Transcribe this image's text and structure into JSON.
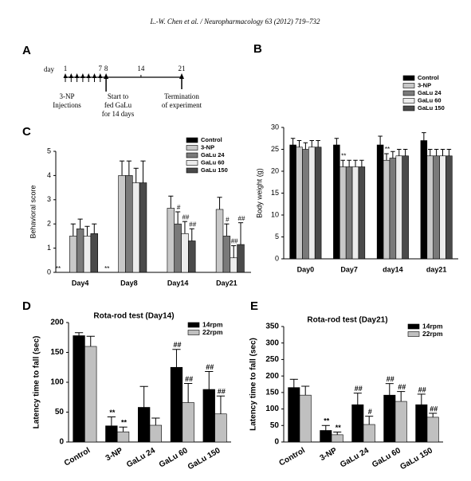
{
  "header": "L.-W. Chen et al. / Neuropharmacology 63 (2012) 719–732",
  "panel_a": {
    "panel": "A",
    "axis_label": "day",
    "days": [
      1,
      7,
      8,
      14,
      21
    ],
    "injection_label": [
      "3-NP",
      "Injections"
    ],
    "start_label": [
      "Start to",
      "fed GaLu",
      "for 14 days"
    ],
    "end_label": [
      "Termination",
      "of experiment"
    ]
  },
  "chart_data": [
    {
      "type": "bar",
      "panel": "B",
      "ylabel": "Body weight (g)",
      "categories": [
        "Day0",
        "Day7",
        "day14",
        "day21"
      ],
      "series": [
        {
          "name": "Control",
          "color": "#000000",
          "values": [
            26,
            26,
            26,
            27
          ],
          "errors": [
            1.5,
            1.5,
            2,
            1.8
          ],
          "significance": [
            null,
            null,
            null,
            null
          ]
        },
        {
          "name": "3-NP",
          "color": "#c8c8c8",
          "values": [
            25.5,
            21,
            22.5,
            23.5
          ],
          "errors": [
            1.5,
            1.5,
            1.5,
            1.5
          ],
          "significance": [
            null,
            "**",
            "**",
            null
          ]
        },
        {
          "name": "GaLu 24",
          "color": "#7a7a7a",
          "values": [
            25,
            21,
            23,
            23.5
          ],
          "errors": [
            1.5,
            1.5,
            1.5,
            1.5
          ],
          "significance": [
            null,
            null,
            null,
            null
          ]
        },
        {
          "name": "GaLu 60",
          "color": "#ececec",
          "values": [
            25.5,
            21,
            23.5,
            23.5
          ],
          "errors": [
            1.5,
            1.5,
            1.5,
            1.5
          ],
          "significance": [
            null,
            null,
            null,
            null
          ]
        },
        {
          "name": "GaLu 150",
          "color": "#4a4a4a",
          "values": [
            25.5,
            21,
            23.5,
            23.5
          ],
          "errors": [
            1.5,
            1.5,
            1.5,
            1.5
          ],
          "significance": [
            null,
            null,
            null,
            null
          ]
        }
      ],
      "ylim": [
        0,
        30
      ],
      "yticks": [
        0,
        5,
        10,
        15,
        20,
        25,
        30
      ],
      "legend": "upper right"
    },
    {
      "type": "bar",
      "panel": "C",
      "ylabel": "Behavioral score",
      "categories": [
        "Day4",
        "Day8",
        "Day14",
        "Day21"
      ],
      "series": [
        {
          "name": "Control",
          "color": "#000000",
          "values": [
            0,
            0,
            0,
            0
          ],
          "errors": [
            0,
            0,
            0,
            0
          ],
          "significance": [
            "**",
            "**",
            null,
            null
          ]
        },
        {
          "name": "3-NP",
          "color": "#c8c8c8",
          "values": [
            1.5,
            4.0,
            2.65,
            2.6
          ],
          "errors": [
            0.5,
            0.6,
            0.5,
            0.5
          ],
          "significance": [
            null,
            null,
            null,
            null
          ]
        },
        {
          "name": "GaLu 24",
          "color": "#7a7a7a",
          "values": [
            1.8,
            4.0,
            2.0,
            1.5
          ],
          "errors": [
            0.4,
            0.6,
            0.5,
            0.5
          ],
          "significance": [
            null,
            null,
            "#",
            "#"
          ]
        },
        {
          "name": "GaLu 60",
          "color": "#ececec",
          "values": [
            1.5,
            3.7,
            1.6,
            0.6
          ],
          "errors": [
            0.4,
            0.6,
            0.5,
            0.5
          ],
          "significance": [
            null,
            null,
            "##",
            "##"
          ]
        },
        {
          "name": "GaLu 150",
          "color": "#4a4a4a",
          "values": [
            1.6,
            3.7,
            1.3,
            1.15
          ],
          "errors": [
            0.4,
            0.9,
            0.5,
            0.9
          ],
          "significance": [
            null,
            null,
            "##",
            "##"
          ]
        }
      ],
      "ylim": [
        0,
        5
      ],
      "yticks": [
        0,
        1,
        2,
        3,
        4,
        5
      ],
      "legend": "upper right"
    },
    {
      "type": "bar",
      "panel": "D",
      "title": "Rota-rod test (Day14)",
      "ylabel": "Latency time to fall (sec)",
      "categories": [
        "Control",
        "3-NP",
        "GaLu 24",
        "GaLu 60",
        "GaLu 150"
      ],
      "series": [
        {
          "name": "14rpm",
          "color": "#000000",
          "values": [
            178,
            27,
            58,
            125,
            88
          ],
          "errors": [
            5,
            15,
            35,
            30,
            30
          ],
          "significance": [
            null,
            "**",
            null,
            "##",
            "##"
          ]
        },
        {
          "name": "22rpm",
          "color": "#c0c0c0",
          "values": [
            160,
            17,
            28,
            66,
            47
          ],
          "errors": [
            17,
            8,
            12,
            32,
            30
          ],
          "significance": [
            null,
            "**",
            null,
            "##",
            "##"
          ]
        }
      ],
      "ylim": [
        0,
        200
      ],
      "yticks": [
        0,
        50,
        100,
        150,
        200
      ],
      "legend": "upper right"
    },
    {
      "type": "bar",
      "panel": "E",
      "title": "Rota-rod test (Day21)",
      "ylabel": "Latency time to fall (sec)",
      "categories": [
        "Control",
        "3-NP",
        "GaLu 24",
        "GaLu 60",
        "GaLu 150"
      ],
      "series": [
        {
          "name": "14rpm",
          "color": "#000000",
          "values": [
            165,
            35,
            113,
            142,
            113
          ],
          "errors": [
            25,
            15,
            35,
            35,
            32
          ],
          "significance": [
            null,
            "**",
            "##",
            "##",
            "##"
          ]
        },
        {
          "name": "22rpm",
          "color": "#c0c0c0",
          "values": [
            142,
            22,
            53,
            123,
            75
          ],
          "errors": [
            27,
            8,
            25,
            30,
            12
          ],
          "significance": [
            null,
            "**",
            "#",
            "##",
            "##"
          ]
        }
      ],
      "ylim": [
        0,
        350
      ],
      "yticks": [
        0,
        50,
        100,
        150,
        200,
        250,
        300,
        350
      ],
      "legend": "upper right"
    }
  ]
}
